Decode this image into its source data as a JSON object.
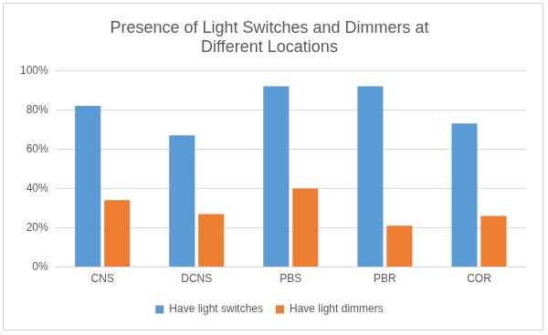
{
  "chart_data": {
    "type": "bar",
    "title": [
      "Presence of Light Switches and Dimmers at",
      "Different Locations"
    ],
    "categories": [
      "CNS",
      "DCNS",
      "PBS",
      "PBR",
      "COR"
    ],
    "series": [
      {
        "name": "Have light switches",
        "color": "#5b9bd5",
        "values": [
          82,
          67,
          92,
          92,
          73
        ]
      },
      {
        "name": "Have light dimmers",
        "color": "#ed7d31",
        "values": [
          34,
          27,
          40,
          21,
          26
        ]
      }
    ],
    "ylim": [
      0,
      100
    ],
    "yticks": [
      {
        "value": 0,
        "label": "0%"
      },
      {
        "value": 20,
        "label": "20%"
      },
      {
        "value": 40,
        "label": "40%"
      },
      {
        "value": 60,
        "label": "60%"
      },
      {
        "value": 80,
        "label": "80%"
      },
      {
        "value": 100,
        "label": "100%"
      }
    ],
    "grid": true,
    "legend": "bottom"
  }
}
